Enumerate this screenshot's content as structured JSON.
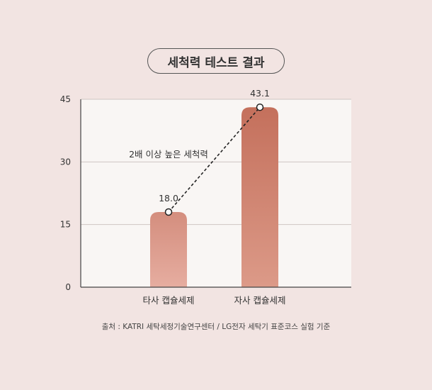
{
  "chart_data": {
    "type": "bar",
    "title": "세척력 테스트 결과",
    "categories": [
      "타사 캡슐세제",
      "자사 캡슐세제"
    ],
    "values": [
      18.0,
      43.1
    ],
    "value_labels": [
      "18.0",
      "43.1"
    ],
    "ylim": [
      0,
      45
    ],
    "yticks": [
      "0",
      "15",
      "30",
      "45"
    ],
    "annotation": "2배 이상 높은 세척력",
    "grid": true,
    "xlabel": "",
    "ylabel": ""
  },
  "source": "출처 : KATRI 세탁세정기술연구센터 / LG전자 세탁기 표준코스 실험 기준",
  "colors": {
    "background": "#f2e4e2",
    "plot_background": "#f9f6f4",
    "bar_other_top": "#d48e7e",
    "bar_other_bottom": "#e6ada0",
    "bar_ours_top": "#c4705c",
    "bar_ours_bottom": "#dc9a88",
    "text": "#333333"
  }
}
